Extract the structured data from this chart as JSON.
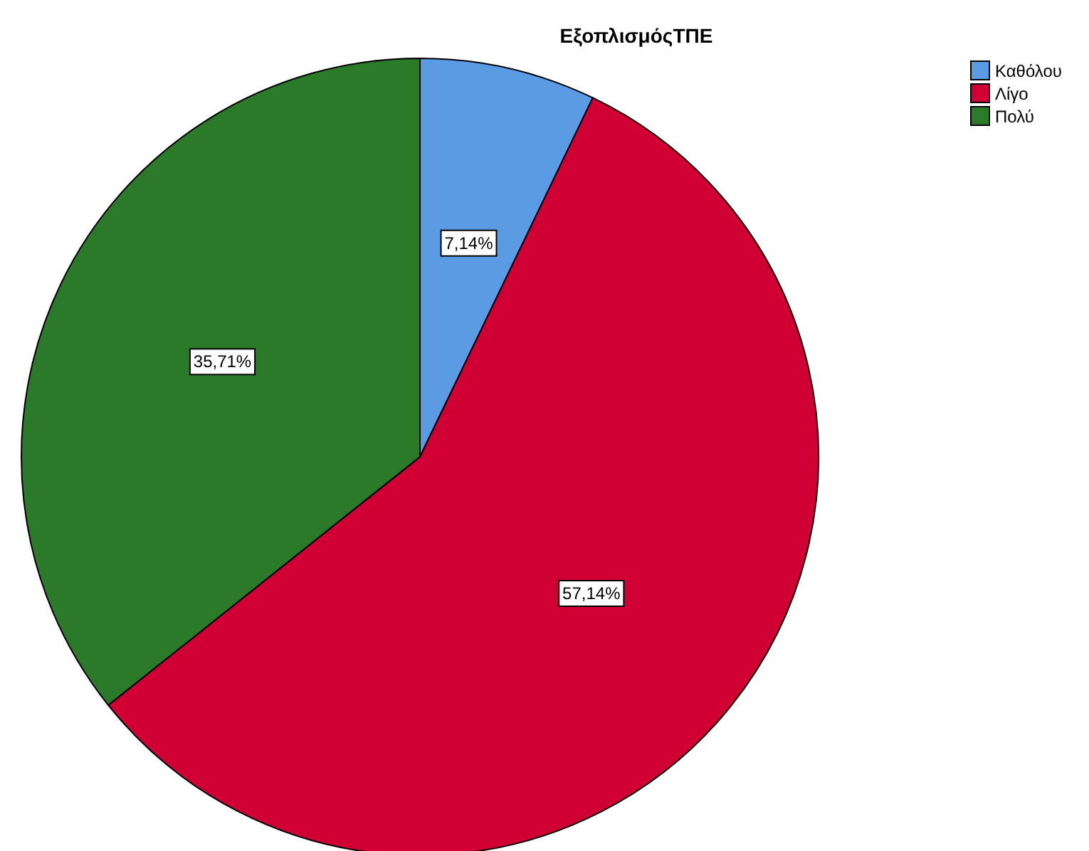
{
  "chart_data": {
    "type": "pie",
    "title": "ΕξοπλισμόςΤΠΕ",
    "categories": [
      "Καθόλου",
      "Λίγο",
      "Πολύ"
    ],
    "values": [
      7.14,
      57.14,
      35.71
    ],
    "colors": [
      "#5b9be4",
      "#d10034",
      "#2a7a2a"
    ],
    "value_labels": [
      "7,14%",
      "57,14%",
      "35,71%"
    ],
    "legend": "top right"
  }
}
